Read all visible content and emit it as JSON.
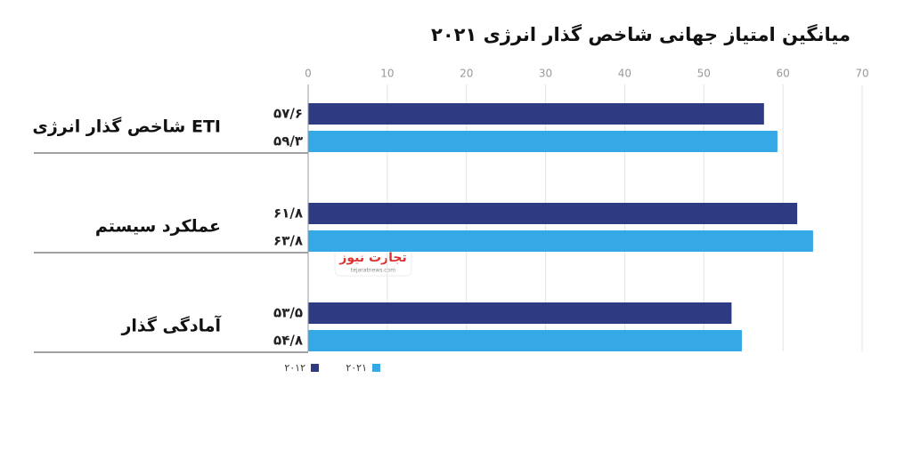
{
  "chart_data": {
    "type": "bar",
    "orientation": "horizontal",
    "title": "میانگین امتیاز جهانی شاخص گذار انرژی ۲۰۲۱",
    "categories": [
      "شاخص گذار انرژی ETI",
      "عملکرد سیستم",
      "آمادگی گذار"
    ],
    "series": [
      {
        "name": "۲۰۱۲",
        "color": "#2e3a82",
        "values": [
          57.6,
          61.8,
          53.5
        ],
        "value_labels": [
          "۵۷/۶",
          "۶۱/۸",
          "۵۳/۵"
        ]
      },
      {
        "name": "۲۰۲۱",
        "color": "#35a8e6",
        "values": [
          59.3,
          63.8,
          54.8
        ],
        "value_labels": [
          "۵۹/۳",
          "۶۳/۸",
          "۵۴/۸"
        ]
      }
    ],
    "xlim": [
      0,
      70
    ],
    "xticks": [
      0,
      10,
      20,
      30,
      40,
      50,
      60,
      70
    ],
    "grid": true,
    "watermark": "تجارت نیوز",
    "watermark_url": "tejaratnews.com"
  }
}
